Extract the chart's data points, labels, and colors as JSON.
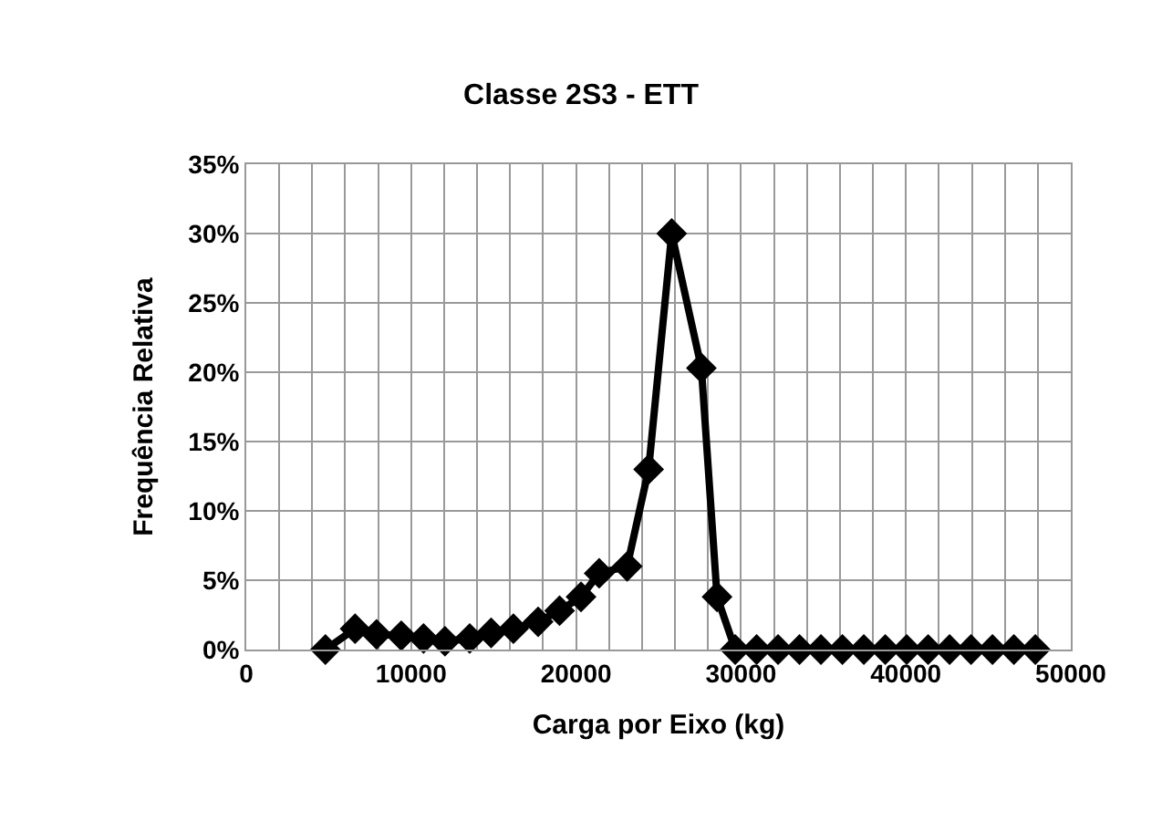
{
  "chart_data": {
    "type": "line",
    "title": "Classe 2S3 - ETT",
    "xlabel": "Carga por Eixo (kg)",
    "ylabel": "Frequência Relativa",
    "x": [
      4800,
      6600,
      7900,
      9400,
      10750,
      12050,
      13550,
      14850,
      16200,
      17700,
      19000,
      20300,
      21400,
      23100,
      24400,
      25800,
      27600,
      28550,
      29650,
      30950,
      32250,
      33550,
      34850,
      36150,
      37450,
      38750,
      40050,
      41350,
      42650,
      43950,
      45250,
      46550,
      47850
    ],
    "values": [
      0,
      1.5,
      1.1,
      1.0,
      0.8,
      0.6,
      0.8,
      1.2,
      1.5,
      2.0,
      2.8,
      3.8,
      5.5,
      6.0,
      13.0,
      30.0,
      20.3,
      3.8,
      0,
      0,
      0,
      0,
      0,
      0,
      0,
      0,
      0,
      0,
      0,
      0,
      0,
      0,
      0
    ],
    "color": "#000000",
    "marker": "diamond",
    "line_style": "solid",
    "grid": true,
    "xlim": [
      0,
      50000
    ],
    "xticks": [
      0,
      {
        "value": 2000,
        "label": null
      },
      {
        "value": 4000,
        "label": null
      },
      {
        "value": 6000,
        "label": null
      },
      {
        "value": 8000,
        "label": null
      },
      10000,
      {
        "value": 12000,
        "label": null
      },
      {
        "value": 14000,
        "label": null
      },
      {
        "value": 16000,
        "label": null
      },
      {
        "value": 18000,
        "label": null
      },
      20000,
      {
        "value": 22000,
        "label": null
      },
      {
        "value": 24000,
        "label": null
      },
      {
        "value": 26000,
        "label": null
      },
      {
        "value": 28000,
        "label": null
      },
      30000,
      {
        "value": 32000,
        "label": null
      },
      {
        "value": 34000,
        "label": null
      },
      {
        "value": 36000,
        "label": null
      },
      {
        "value": 38000,
        "label": null
      },
      40000,
      {
        "value": 42000,
        "label": null
      },
      {
        "value": 44000,
        "label": null
      },
      {
        "value": 46000,
        "label": null
      },
      {
        "value": 48000,
        "label": null
      },
      50000
    ],
    "ylim": [
      0,
      35
    ],
    "yticks": [
      {
        "value": 0,
        "label": "0%"
      },
      {
        "value": 5,
        "label": "5%"
      },
      {
        "value": 10,
        "label": "10%"
      },
      {
        "value": 15,
        "label": "15%"
      },
      {
        "value": 20,
        "label": "20%"
      },
      {
        "value": 25,
        "label": "25%"
      },
      {
        "value": 30,
        "label": "30%"
      },
      {
        "value": 35,
        "label": "35%"
      }
    ]
  }
}
